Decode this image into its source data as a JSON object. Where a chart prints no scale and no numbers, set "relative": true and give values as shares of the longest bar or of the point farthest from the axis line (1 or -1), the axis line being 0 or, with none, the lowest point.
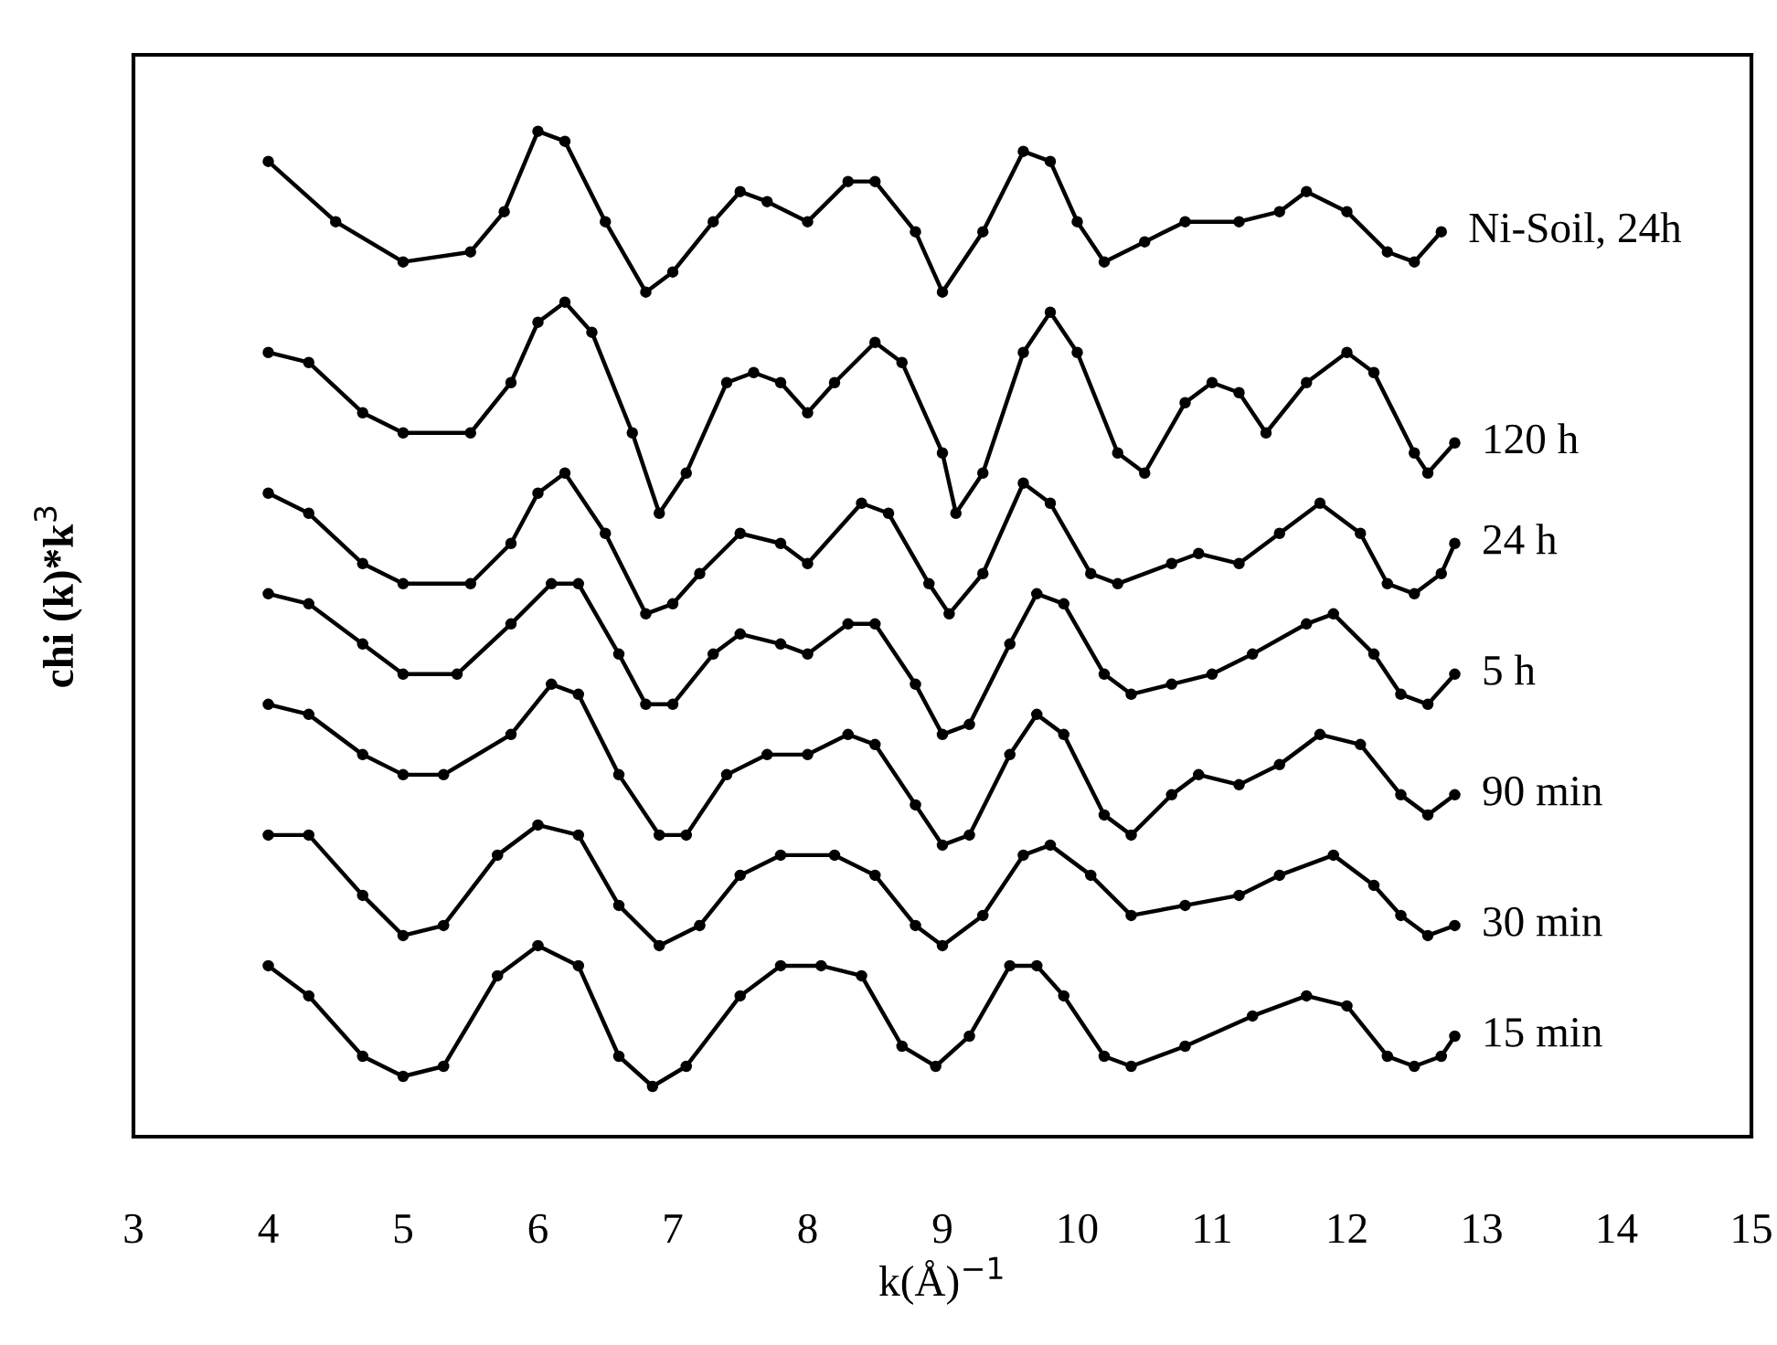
{
  "chart_data": {
    "type": "line",
    "xlabel": "k(Å)$^{−1}$",
    "ylabel": "chi (k)*k$^{3}$",
    "relative": true,
    "xlim": [
      3,
      15
    ],
    "xticks": [
      3,
      4,
      5,
      6,
      7,
      8,
      9,
      10,
      11,
      12,
      13,
      14,
      15
    ],
    "grid": false,
    "legend": false,
    "marker": "circle",
    "line_style": "solid",
    "series": [
      {
        "name": "Ni-Soil, 24h",
        "color": "#000000",
        "x": [
          4,
          4.5,
          5,
          5.5,
          5.75,
          6,
          6.2,
          6.5,
          6.8,
          7,
          7.3,
          7.5,
          7.7,
          8,
          8.3,
          8.5,
          8.8,
          9,
          9.3,
          9.6,
          9.8,
          10,
          10.2,
          10.5,
          10.8,
          11.2,
          11.5,
          11.7,
          12,
          12.3,
          12.5,
          12.7
        ],
        "values": [
          0.97,
          0.91,
          0.87,
          0.88,
          0.92,
          1.0,
          0.99,
          0.91,
          0.84,
          0.86,
          0.91,
          0.94,
          0.93,
          0.91,
          0.95,
          0.95,
          0.9,
          0.84,
          0.9,
          0.98,
          0.97,
          0.91,
          0.87,
          0.89,
          0.91,
          0.91,
          0.92,
          0.94,
          0.92,
          0.88,
          0.87,
          0.9
        ]
      },
      {
        "name": "120 h",
        "color": "#000000",
        "x": [
          4,
          4.3,
          4.7,
          5,
          5.5,
          5.8,
          6,
          6.2,
          6.4,
          6.7,
          6.9,
          7.1,
          7.4,
          7.6,
          7.8,
          8,
          8.2,
          8.5,
          8.7,
          9,
          9.1,
          9.3,
          9.6,
          9.8,
          10,
          10.3,
          10.5,
          10.8,
          11,
          11.2,
          11.4,
          11.7,
          12,
          12.2,
          12.5,
          12.6,
          12.8
        ],
        "values": [
          0.78,
          0.77,
          0.72,
          0.7,
          0.7,
          0.75,
          0.81,
          0.83,
          0.8,
          0.7,
          0.62,
          0.66,
          0.75,
          0.76,
          0.75,
          0.72,
          0.75,
          0.79,
          0.77,
          0.68,
          0.62,
          0.66,
          0.78,
          0.82,
          0.78,
          0.68,
          0.66,
          0.73,
          0.75,
          0.74,
          0.7,
          0.75,
          0.78,
          0.76,
          0.68,
          0.66,
          0.69
        ]
      },
      {
        "name": "24 h",
        "color": "#000000",
        "x": [
          4,
          4.3,
          4.7,
          5,
          5.5,
          5.8,
          6,
          6.2,
          6.5,
          6.8,
          7,
          7.2,
          7.5,
          7.8,
          8,
          8.4,
          8.6,
          8.9,
          9.05,
          9.3,
          9.6,
          9.8,
          10.1,
          10.3,
          10.7,
          10.9,
          11.2,
          11.5,
          11.8,
          12.1,
          12.3,
          12.5,
          12.7,
          12.8
        ],
        "values": [
          0.64,
          0.62,
          0.57,
          0.55,
          0.55,
          0.59,
          0.64,
          0.66,
          0.6,
          0.52,
          0.53,
          0.56,
          0.6,
          0.59,
          0.57,
          0.63,
          0.62,
          0.55,
          0.52,
          0.56,
          0.65,
          0.63,
          0.56,
          0.55,
          0.57,
          0.58,
          0.57,
          0.6,
          0.63,
          0.6,
          0.55,
          0.54,
          0.56,
          0.59
        ]
      },
      {
        "name": "5 h",
        "color": "#000000",
        "x": [
          4,
          4.3,
          4.7,
          5,
          5.4,
          5.8,
          6.1,
          6.3,
          6.6,
          6.8,
          7,
          7.3,
          7.5,
          7.8,
          8,
          8.3,
          8.5,
          8.8,
          9,
          9.2,
          9.5,
          9.7,
          9.9,
          10.2,
          10.4,
          10.7,
          11,
          11.3,
          11.7,
          11.9,
          12.2,
          12.4,
          12.6,
          12.8
        ],
        "values": [
          0.54,
          0.53,
          0.49,
          0.46,
          0.46,
          0.51,
          0.55,
          0.55,
          0.48,
          0.43,
          0.43,
          0.48,
          0.5,
          0.49,
          0.48,
          0.51,
          0.51,
          0.45,
          0.4,
          0.41,
          0.49,
          0.54,
          0.53,
          0.46,
          0.44,
          0.45,
          0.46,
          0.48,
          0.51,
          0.52,
          0.48,
          0.44,
          0.43,
          0.46
        ]
      },
      {
        "name": "90 min",
        "color": "#000000",
        "x": [
          4,
          4.3,
          4.7,
          5,
          5.3,
          5.8,
          6.1,
          6.3,
          6.6,
          6.9,
          7.1,
          7.4,
          7.7,
          8,
          8.3,
          8.5,
          8.8,
          9,
          9.2,
          9.5,
          9.7,
          9.9,
          10.2,
          10.4,
          10.7,
          10.9,
          11.2,
          11.5,
          11.8,
          12.1,
          12.4,
          12.6,
          12.8
        ],
        "values": [
          0.43,
          0.42,
          0.38,
          0.36,
          0.36,
          0.4,
          0.45,
          0.44,
          0.36,
          0.3,
          0.3,
          0.36,
          0.38,
          0.38,
          0.4,
          0.39,
          0.33,
          0.29,
          0.3,
          0.38,
          0.42,
          0.4,
          0.32,
          0.3,
          0.34,
          0.36,
          0.35,
          0.37,
          0.4,
          0.39,
          0.34,
          0.32,
          0.34
        ]
      },
      {
        "name": "30 min",
        "color": "#000000",
        "x": [
          4,
          4.3,
          4.7,
          5,
          5.3,
          5.7,
          6,
          6.3,
          6.6,
          6.9,
          7.2,
          7.5,
          7.8,
          8.2,
          8.5,
          8.8,
          9,
          9.3,
          9.6,
          9.8,
          10.1,
          10.4,
          10.8,
          11.2,
          11.5,
          11.9,
          12.2,
          12.4,
          12.6,
          12.8
        ],
        "values": [
          0.3,
          0.3,
          0.24,
          0.2,
          0.21,
          0.28,
          0.31,
          0.3,
          0.23,
          0.19,
          0.21,
          0.26,
          0.28,
          0.28,
          0.26,
          0.21,
          0.19,
          0.22,
          0.28,
          0.29,
          0.26,
          0.22,
          0.23,
          0.24,
          0.26,
          0.28,
          0.25,
          0.22,
          0.2,
          0.21
        ]
      },
      {
        "name": "15 min",
        "color": "#000000",
        "x": [
          4,
          4.3,
          4.7,
          5,
          5.3,
          5.7,
          6,
          6.3,
          6.6,
          6.85,
          7.1,
          7.5,
          7.8,
          8.1,
          8.4,
          8.7,
          8.95,
          9.2,
          9.5,
          9.7,
          9.9,
          10.2,
          10.4,
          10.8,
          11.3,
          11.7,
          12,
          12.3,
          12.5,
          12.7,
          12.8
        ],
        "values": [
          0.17,
          0.14,
          0.08,
          0.06,
          0.07,
          0.16,
          0.19,
          0.17,
          0.08,
          0.05,
          0.07,
          0.14,
          0.17,
          0.17,
          0.16,
          0.09,
          0.07,
          0.1,
          0.17,
          0.17,
          0.14,
          0.08,
          0.07,
          0.09,
          0.12,
          0.14,
          0.13,
          0.08,
          0.07,
          0.08,
          0.1
        ]
      }
    ]
  }
}
